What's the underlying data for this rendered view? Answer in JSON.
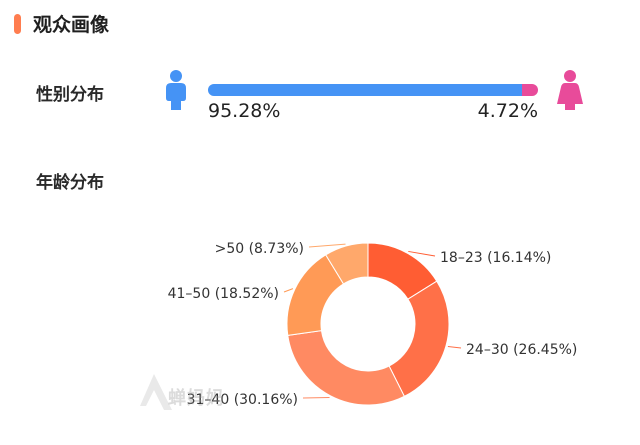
{
  "header": {
    "title": "观众画像",
    "accent_color": "#ff7d4f"
  },
  "gender": {
    "label": "性别分布",
    "male": {
      "icon": "male-person-icon",
      "percent_label": "95.28%",
      "value": 95.28,
      "color": "#4593f5"
    },
    "female": {
      "icon": "female-person-icon",
      "percent_label": "4.72%",
      "value": 4.72,
      "color": "#e84b9a"
    }
  },
  "age": {
    "label": "年龄分布"
  },
  "chart_data": {
    "type": "pie",
    "variant": "donut",
    "categories": [
      "18–23",
      "24–30",
      "31–40",
      "41–50",
      ">50"
    ],
    "values": [
      16.14,
      26.45,
      30.16,
      18.52,
      8.73
    ],
    "labels": [
      "18–23 (16.14%)",
      "24–30 (26.45%)",
      "31–40 (30.16%)",
      "41–50 (18.52%)",
      ">50 (8.73%)"
    ],
    "colors": [
      "#ff5d33",
      "#ff7048",
      "#ff8a62",
      "#ff9a56",
      "#ffa86b"
    ]
  },
  "watermark": {
    "icon": "logo-watermark-icon",
    "text": "蝉妈妈"
  }
}
